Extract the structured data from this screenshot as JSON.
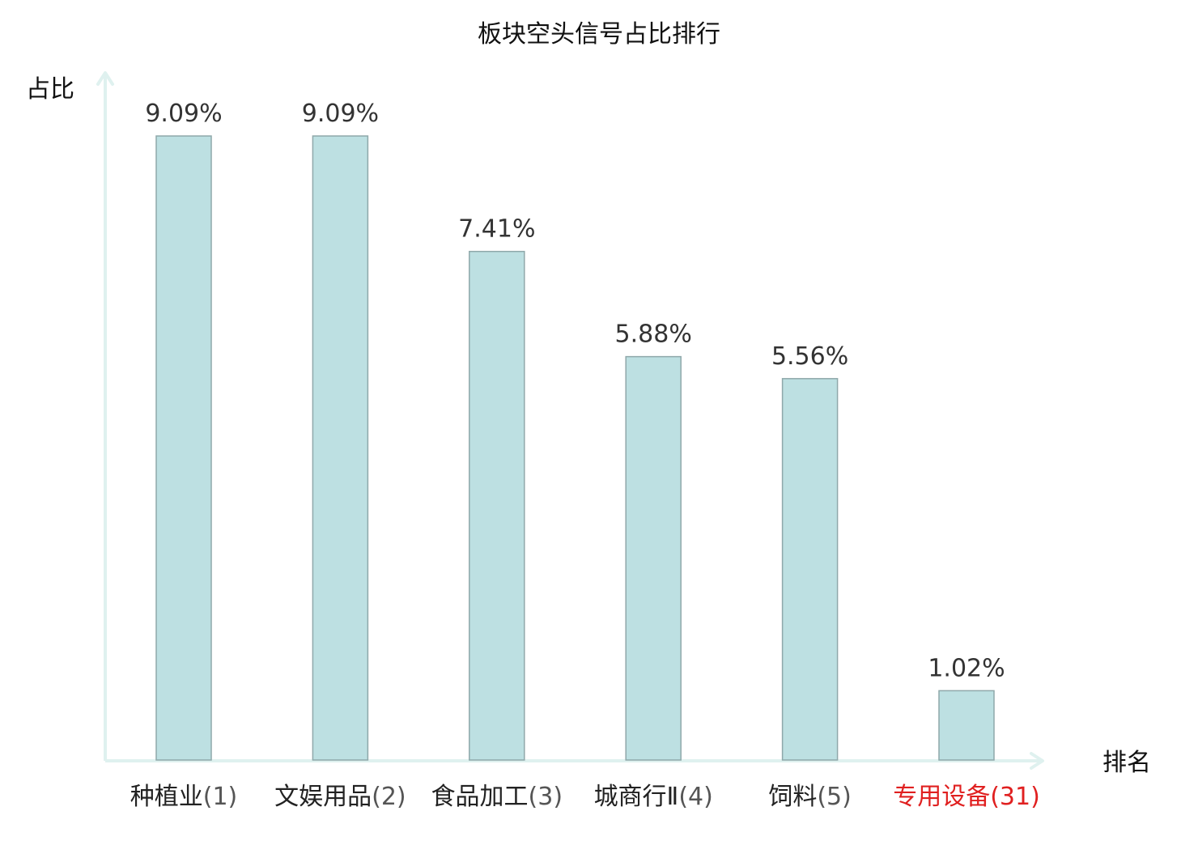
{
  "chart_data": {
    "type": "bar",
    "title": "板块空头信号占比排行",
    "xlabel": "排名",
    "ylabel": "占比",
    "categories": [
      "种植业",
      "文娱用品",
      "食品加工",
      "城商行Ⅱ",
      "饲料",
      "专用设备"
    ],
    "ranks": [
      "(1)",
      "(2)",
      "(3)",
      "(4)",
      "(5)",
      "(31)"
    ],
    "values": [
      9.09,
      9.09,
      7.41,
      5.88,
      5.56,
      1.02
    ],
    "value_labels": [
      "9.09%",
      "9.09%",
      "7.41%",
      "5.88%",
      "5.56%",
      "1.02%"
    ],
    "highlight_index": 5,
    "ylim": [
      0,
      10.0
    ],
    "grid": false,
    "legend": "none"
  },
  "colors": {
    "bar_fill": "#bde0e2",
    "bar_stroke": "#8fa8aa",
    "axis": "#dff1ef",
    "text": "#222222",
    "value_text": "#333333",
    "rank_text": "#555555",
    "highlight": "#e02020"
  }
}
